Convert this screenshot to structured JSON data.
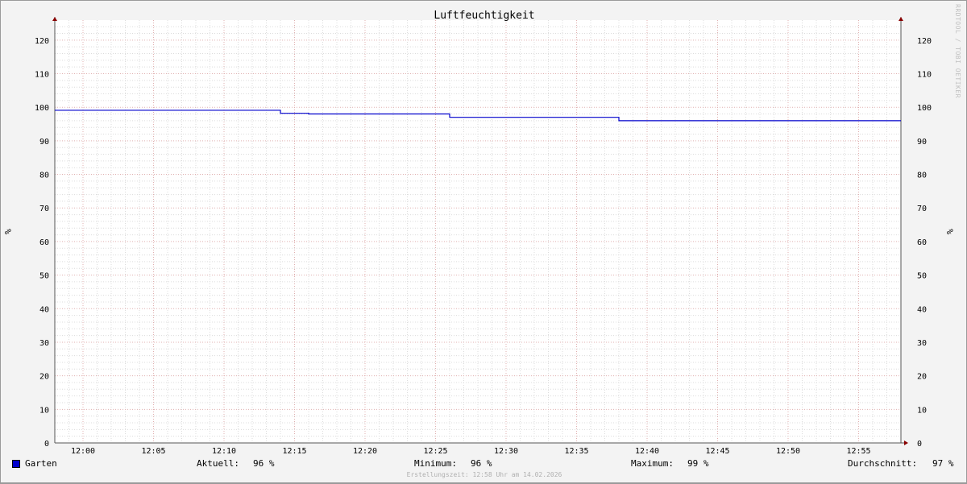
{
  "chart_data": {
    "type": "line",
    "title": "Luftfeuchtigkeit",
    "ylabel": "%",
    "ylabel_right": "%",
    "xlim": [
      "11:58",
      "12:58"
    ],
    "ylim": [
      0,
      125
    ],
    "x_ticks": [
      "12:00",
      "12:05",
      "12:10",
      "12:15",
      "12:20",
      "12:25",
      "12:30",
      "12:35",
      "12:40",
      "12:45",
      "12:50",
      "12:55"
    ],
    "y_ticks": [
      0,
      10,
      20,
      30,
      40,
      50,
      60,
      70,
      80,
      90,
      100,
      110,
      120
    ],
    "grid": true,
    "legend_placement": "bottom",
    "series": [
      {
        "name": "Garten",
        "color": "#0000cc",
        "step": true,
        "x": [
          "11:58",
          "12:14",
          "12:16",
          "12:26",
          "12:38",
          "12:58"
        ],
        "y": [
          99.1,
          98.2,
          98.0,
          97.0,
          96.0,
          96.0
        ]
      }
    ],
    "stats": {
      "current_label": "Aktuell:",
      "current": "96 %",
      "min_label": "Minimum:",
      "min": "96 %",
      "max_label": "Maximum:",
      "max": "99 %",
      "avg_label": "Durchschnitt:",
      "avg": "97 %"
    }
  },
  "watermark": "RRDTOOL / TOBI OETIKER",
  "created": "Erstellungszeit: 12:58 Uhr am 14.02.2026"
}
